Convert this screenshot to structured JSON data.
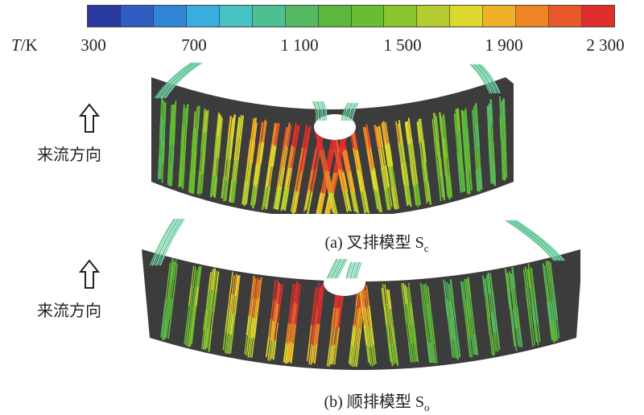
{
  "colorbar": {
    "axis_title_italic": "T",
    "axis_title_unit": "/K",
    "ticks": [
      "300",
      "700",
      "1 100",
      "1 500",
      "1 900",
      "2 300"
    ],
    "tick_values": [
      300,
      700,
      1100,
      1500,
      1900,
      2300
    ],
    "range": [
      300,
      2300
    ],
    "segments": 16,
    "colors": [
      "#2b3a9e",
      "#2f5cc0",
      "#2f86d6",
      "#38aee0",
      "#46c2c2",
      "#4dbf90",
      "#55b964",
      "#5cb83c",
      "#69bd30",
      "#8cc430",
      "#b6cc30",
      "#dcd82e",
      "#f0b028",
      "#ee8424",
      "#e8582a",
      "#de2f2c"
    ]
  },
  "panels": [
    {
      "flow_label": "来流方向",
      "caption_prefix": "(a) 叉排模型 S",
      "caption_sub": "c"
    },
    {
      "flow_label": "来流方向",
      "caption_prefix": "(b) 顺排模型 S",
      "caption_sub": "o"
    }
  ],
  "palette": {
    "band": "#3c3c3c",
    "low": "#4db848",
    "mid": "#9acd32",
    "high": "#f28c28",
    "peak": "#e23a2a",
    "cool": "#7fd6c8"
  }
}
